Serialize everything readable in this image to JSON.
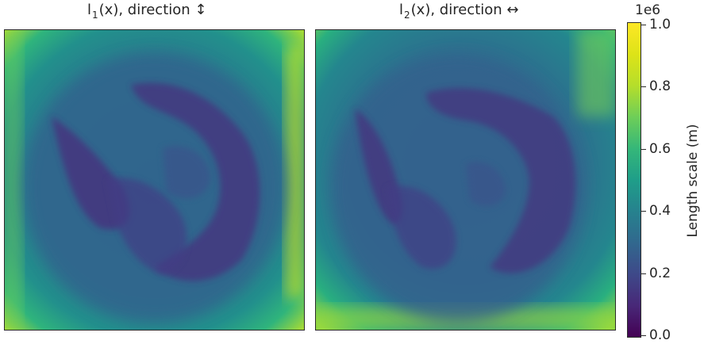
{
  "chart_data": [
    {
      "type": "heatmap",
      "title_main": "l",
      "title_sub": "1",
      "title_rest": "(x), direction ↕",
      "colormap": "viridis",
      "vmin": 0.0,
      "vmax": 1000000.0,
      "description_values": {
        "border_max": 950000,
        "background": 480000,
        "central_blob_min": 130000
      }
    },
    {
      "type": "heatmap",
      "title_main": "l",
      "title_sub": "2",
      "title_rest": "(x), direction ↔",
      "colormap": "viridis",
      "vmin": 0.0,
      "vmax": 1000000.0,
      "description_values": {
        "border_max": 850000,
        "background": 450000,
        "central_blob_min": 130000
      }
    }
  ],
  "colorbar": {
    "title": "Length scale (m)",
    "multiplier": "1e6",
    "ticks": [
      "0.0",
      "0.2",
      "0.4",
      "0.6",
      "0.8",
      "1.0"
    ],
    "tick_values": [
      0.0,
      0.2,
      0.4,
      0.6,
      0.8,
      1.0
    ]
  }
}
